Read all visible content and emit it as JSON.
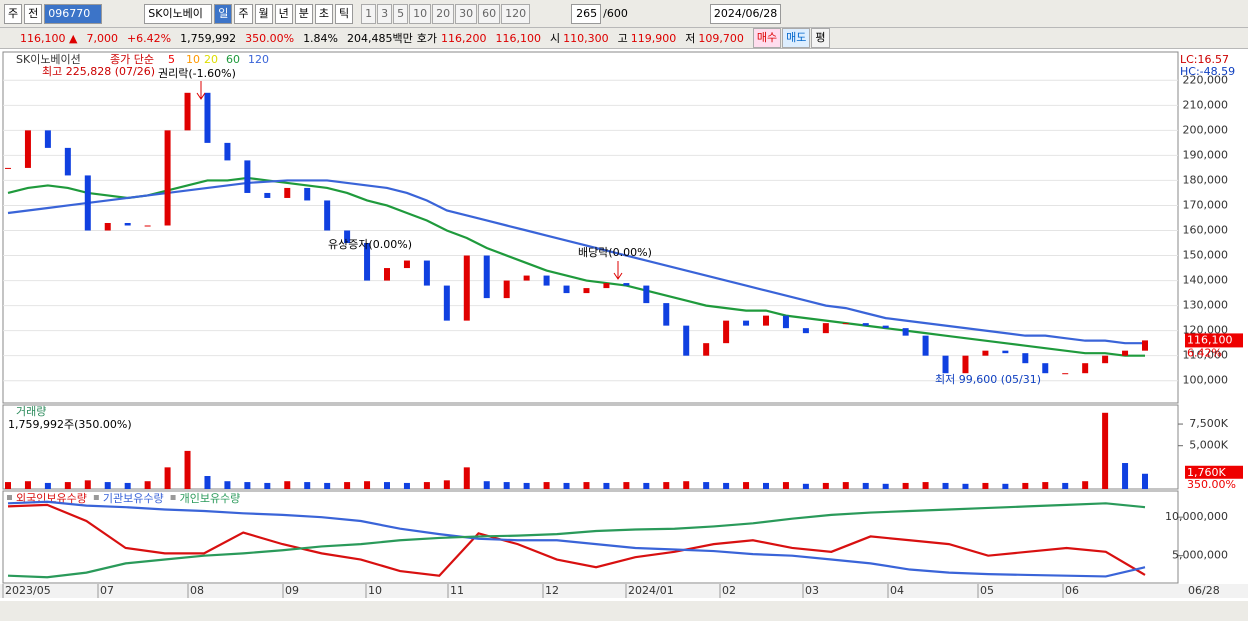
{
  "toolbar": {
    "period": "주",
    "prev": "전",
    "code": "096770",
    "name": "SK이노베이",
    "units": [
      "일",
      "주",
      "월",
      "년",
      "분",
      "초",
      "틱"
    ],
    "spans": [
      "1",
      "3",
      "5",
      "10",
      "20",
      "30",
      "60",
      "120"
    ],
    "count": "265",
    "max": "/600",
    "date": "2024/06/28"
  },
  "quote": {
    "price": "116,100 ▲",
    "change": "7,000",
    "rate": "+6.42%",
    "volume": "1,759,992",
    "volume_rate": "350.00%",
    "turnover": "1.84%",
    "cap": "204,485백만",
    "ask_label": "호가",
    "ask": "116,200",
    "bid": "116,100",
    "open_label": "시",
    "open": "110,300",
    "high_label": "고",
    "high": "119,900",
    "low_label": "저",
    "low": "109,700",
    "buy": "매수",
    "sell": "매도",
    "avg": "평"
  },
  "x_axis": [
    "2023/05",
    "07",
    "08",
    "09",
    "10",
    "11",
    "12",
    "2024/01",
    "02",
    "03",
    "04",
    "05",
    "06",
    "06/28"
  ],
  "chart_data": [
    {
      "type": "candlestick",
      "title": "SK이노베이션",
      "legend_label": "종가 단순",
      "ma_periods": [
        "5",
        "10",
        "20",
        "60",
        "120"
      ],
      "annotations": {
        "high": "최고 225,828 (07/26)",
        "rights": "권리락(-1.60%)",
        "offering": "유상증자(0.00%)",
        "dividend": "배당락(0.00%)",
        "low": "최저 99,600 (05/31)",
        "lc": "LC:16.57",
        "hc": "HC:-48.59",
        "last": "116,100",
        "last_rate": "6.42%"
      },
      "values": [
        185000,
        200000,
        193000,
        182000,
        160000,
        163000,
        162000,
        162000,
        200000,
        215000,
        195000,
        188000,
        175000,
        173000,
        177000,
        172000,
        160000,
        155000,
        140000,
        145000,
        148000,
        138000,
        124000,
        150000,
        133000,
        140000,
        142000,
        138000,
        135000,
        137000,
        139000,
        138000,
        131000,
        122000,
        110000,
        115000,
        124000,
        122000,
        126000,
        121000,
        119000,
        123000,
        123000,
        122000,
        121000,
        118000,
        110000,
        103000,
        110000,
        112000,
        111000,
        107000,
        103000,
        103000,
        107000,
        110000,
        112000,
        116100
      ],
      "series": [
        {
          "name": "60",
          "color": "#1f9a3c",
          "values": [
            175000,
            177000,
            178000,
            177000,
            175000,
            174000,
            173000,
            174000,
            176000,
            178000,
            180000,
            180000,
            181000,
            180000,
            179000,
            178000,
            177000,
            175000,
            172000,
            170000,
            167000,
            164000,
            160000,
            157000,
            153000,
            150000,
            147000,
            144000,
            142000,
            140000,
            139000,
            138000,
            136000,
            134000,
            132000,
            130000,
            129000,
            128000,
            128000,
            126000,
            125000,
            124000,
            123000,
            122000,
            121000,
            120000,
            119000,
            118000,
            117000,
            116000,
            115000,
            114000,
            113000,
            112000,
            111000,
            111000,
            110000,
            110000
          ]
        },
        {
          "name": "120",
          "color": "#3a64d8",
          "values": [
            167000,
            168000,
            169000,
            170000,
            171000,
            172000,
            173000,
            174000,
            175000,
            176000,
            177000,
            178000,
            179000,
            179500,
            180000,
            180000,
            180000,
            179000,
            178000,
            177000,
            175000,
            172000,
            168000,
            166000,
            164000,
            162000,
            160000,
            158000,
            156000,
            154000,
            152000,
            150000,
            148000,
            146000,
            144000,
            142000,
            140000,
            138000,
            136000,
            134000,
            132000,
            130000,
            129000,
            127000,
            125000,
            124000,
            123000,
            122000,
            121000,
            120000,
            119000,
            118000,
            118000,
            117000,
            116000,
            116000,
            115000,
            115000
          ]
        }
      ],
      "up_color": "#e00000",
      "down_color": "#1040e0",
      "ylim": [
        91100,
        231300
      ],
      "yticks": [
        {
          "value": 100000,
          "label": "100,000"
        },
        {
          "value": 110000,
          "label": "110,000"
        },
        {
          "value": 120000,
          "label": "120,000"
        },
        {
          "value": 130000,
          "label": "130,000"
        },
        {
          "value": 140000,
          "label": "140,000"
        },
        {
          "value": 150000,
          "label": "150,000"
        },
        {
          "value": 160000,
          "label": "160,000"
        },
        {
          "value": 170000,
          "label": "170,000"
        },
        {
          "value": 180000,
          "label": "180,000"
        },
        {
          "value": 190000,
          "label": "190,000"
        },
        {
          "value": 200000,
          "label": "200,000"
        },
        {
          "value": 210000,
          "label": "210,000"
        },
        {
          "value": 220000,
          "label": "220,000"
        }
      ],
      "grid": true
    },
    {
      "type": "bar",
      "title": "거래량",
      "subtitle": "1,759,992주(350.00%)",
      "last_label": "1,760K",
      "last_rate": "350.00%",
      "values": [
        800,
        900,
        700,
        800,
        1000,
        800,
        700,
        900,
        2500,
        4400,
        1500,
        900,
        800,
        700,
        900,
        800,
        700,
        800,
        900,
        800,
        700,
        800,
        1000,
        2500,
        900,
        800,
        700,
        800,
        700,
        800,
        700,
        800,
        700,
        800,
        900,
        800,
        700,
        800,
        700,
        800,
        600,
        700,
        800,
        700,
        600,
        700,
        800,
        700,
        600,
        700,
        600,
        700,
        800,
        700,
        900,
        8800,
        3000,
        1760
      ],
      "up_color": "#e00000",
      "down_color": "#1040e0",
      "ylim": [
        0,
        9700
      ],
      "yticks": [
        {
          "value": 5000,
          "label": "5,000K"
        },
        {
          "value": 7500,
          "label": "7,500K"
        }
      ]
    },
    {
      "type": "line",
      "series": [
        {
          "name": "외국인보유수량",
          "color": "#d81010",
          "values": [
            11400000,
            11600000,
            9500000,
            6000000,
            5300000,
            5300000,
            8000000,
            6500000,
            5300000,
            4500000,
            3000000,
            2400000,
            7900000,
            6500000,
            4500000,
            3500000,
            4800000,
            5500000,
            6500000,
            7000000,
            6000000,
            5500000,
            7500000,
            7000000,
            6500000,
            5000000,
            5500000,
            6000000,
            5500000,
            2500000
          ]
        },
        {
          "name": "기관보유수량",
          "color": "#3a64d8",
          "values": [
            11800000,
            12000000,
            11500000,
            11300000,
            11000000,
            10800000,
            10500000,
            10300000,
            10000000,
            9500000,
            8500000,
            7800000,
            7200000,
            7000000,
            7000000,
            6500000,
            6000000,
            5800000,
            5600000,
            5200000,
            5000000,
            4500000,
            4000000,
            3200000,
            2800000,
            2600000,
            2500000,
            2400000,
            2300000,
            3500000
          ]
        },
        {
          "name": "개인보유수량",
          "color": "#2a9a5a",
          "values": [
            2400000,
            2200000,
            2800000,
            4000000,
            4500000,
            5000000,
            5300000,
            5700000,
            6200000,
            6500000,
            7000000,
            7300000,
            7500000,
            7600000,
            7800000,
            8200000,
            8400000,
            8500000,
            8800000,
            9200000,
            9800000,
            10300000,
            10600000,
            10800000,
            11000000,
            11200000,
            11400000,
            11600000,
            11800000,
            11300000
          ]
        }
      ],
      "ylim": [
        1450000,
        13400000
      ],
      "yticks": [
        {
          "value": 5000000,
          "label": "5,000,000"
        },
        {
          "value": 10000000,
          "label": "10,000,000"
        }
      ]
    }
  ]
}
